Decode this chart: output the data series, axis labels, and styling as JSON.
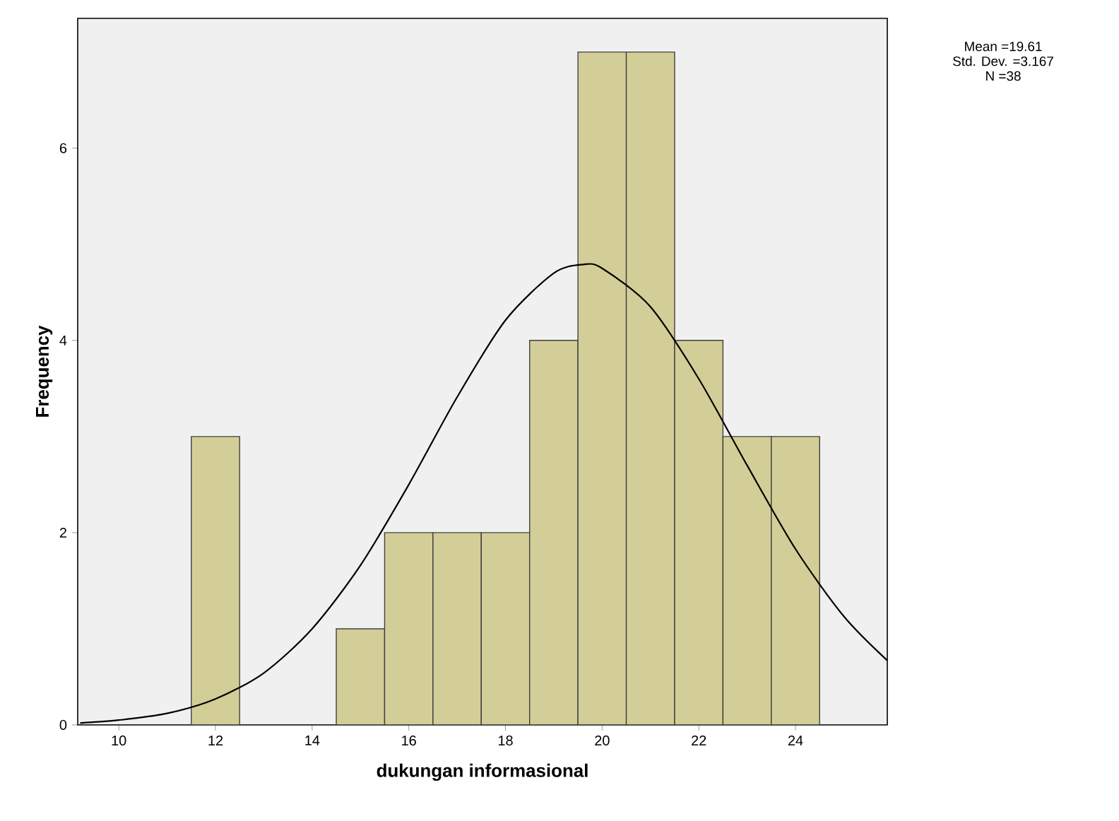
{
  "chart_data": {
    "type": "histogram",
    "xlabel": "dukungan informasional",
    "ylabel": "Frequency",
    "bins": [
      11.5,
      12.5,
      13.5,
      14.5,
      15.5,
      16.5,
      17.5,
      18.5,
      19.5,
      20.5,
      21.5,
      22.5,
      23.5,
      24.5
    ],
    "values": [
      3,
      0,
      0,
      1,
      2,
      2,
      2,
      4,
      7,
      7,
      4,
      3,
      3
    ],
    "color": "#d3ce97",
    "series": [
      {
        "type": "line",
        "color": "#000000",
        "x": [
          9.2,
          10,
          11,
          12,
          13,
          14,
          15,
          16,
          17,
          18,
          19,
          19.61,
          20,
          21,
          22,
          23,
          24,
          25,
          25.9
        ],
        "values": [
          0.02,
          0.05,
          0.12,
          0.27,
          0.54,
          1.0,
          1.66,
          2.5,
          3.41,
          4.21,
          4.7,
          4.79,
          4.75,
          4.35,
          3.6,
          2.7,
          1.83,
          1.13,
          0.67
        ]
      }
    ],
    "xlim": [
      9.15,
      25.9
    ],
    "ylim": [
      0,
      7.35
    ],
    "xticks": [
      10,
      12,
      14,
      16,
      18,
      20,
      22,
      24
    ],
    "yticks": [
      0,
      2,
      4,
      6
    ],
    "annotations": [
      "Mean =19.61",
      "Std. Dev. =3.167",
      "N =38"
    ]
  }
}
